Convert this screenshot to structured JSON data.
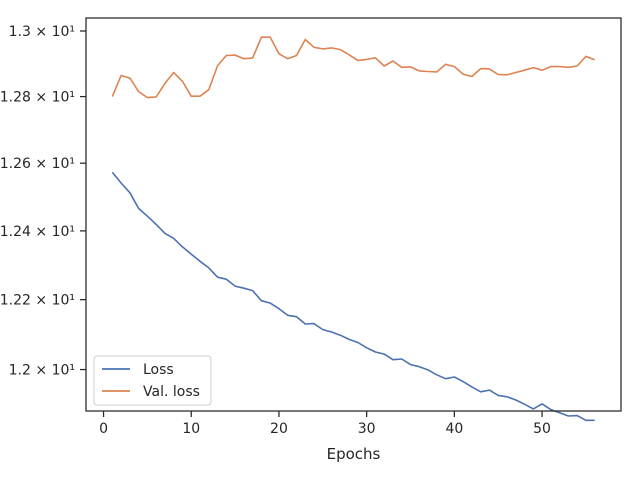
{
  "chart_data": {
    "type": "line",
    "title": "",
    "xlabel": "Epochs",
    "ylabel": "",
    "xlim": [
      -2,
      59
    ],
    "ylim": [
      11.883,
      13.04
    ],
    "yscale": "log",
    "grid": false,
    "legend_position": "lower-left",
    "x_ticks": [
      0,
      10,
      20,
      30,
      40,
      50
    ],
    "x_tick_labels": [
      "0",
      "10",
      "20",
      "30",
      "40",
      "50"
    ],
    "y_ticks": [
      12.0,
      12.2,
      12.4,
      12.6,
      12.8,
      13.0
    ],
    "y_tick_labels": [
      "1.2 × 10¹",
      "1.22 × 10¹",
      "1.24 × 10¹",
      "1.26 × 10¹",
      "1.28 × 10¹",
      "1.3 × 10¹"
    ],
    "x": [
      1,
      2,
      3,
      4,
      5,
      6,
      7,
      8,
      9,
      10,
      11,
      12,
      13,
      14,
      15,
      16,
      17,
      18,
      19,
      20,
      21,
      22,
      23,
      24,
      25,
      26,
      27,
      28,
      29,
      30,
      31,
      32,
      33,
      34,
      35,
      36,
      37,
      38,
      39,
      40,
      41,
      42,
      43,
      44,
      45,
      46,
      47,
      48,
      49,
      50,
      51,
      52,
      53,
      54,
      55,
      56
    ],
    "series": [
      {
        "name": "Loss",
        "color": "#4c72b0",
        "values": [
          12.573,
          12.541,
          12.512,
          12.466,
          12.443,
          12.419,
          12.393,
          12.378,
          12.353,
          12.332,
          12.311,
          12.292,
          12.265,
          12.259,
          12.239,
          12.233,
          12.226,
          12.197,
          12.19,
          12.174,
          12.155,
          12.151,
          12.13,
          12.131,
          12.114,
          12.107,
          12.098,
          12.086,
          12.077,
          12.062,
          12.05,
          12.044,
          12.028,
          12.03,
          12.014,
          12.008,
          11.999,
          11.985,
          11.974,
          11.979,
          11.966,
          11.951,
          11.937,
          11.942,
          11.927,
          11.923,
          11.914,
          11.902,
          11.889,
          11.903,
          11.887,
          11.878,
          11.869,
          11.87,
          11.857,
          11.857
        ]
      },
      {
        "name": "Val. loss",
        "color": "#dd8452",
        "values": [
          12.8,
          12.864,
          12.856,
          12.815,
          12.797,
          12.799,
          12.84,
          12.873,
          12.846,
          12.801,
          12.801,
          12.821,
          12.894,
          12.925,
          12.926,
          12.915,
          12.917,
          12.981,
          12.981,
          12.93,
          12.915,
          12.925,
          12.974,
          12.95,
          12.945,
          12.948,
          12.943,
          12.927,
          12.91,
          12.913,
          12.918,
          12.893,
          12.908,
          12.889,
          12.89,
          12.878,
          12.876,
          12.875,
          12.898,
          12.891,
          12.868,
          12.861,
          12.885,
          12.884,
          12.867,
          12.866,
          12.873,
          12.88,
          12.888,
          12.88,
          12.891,
          12.891,
          12.889,
          12.893,
          12.922,
          12.912
        ]
      }
    ]
  }
}
